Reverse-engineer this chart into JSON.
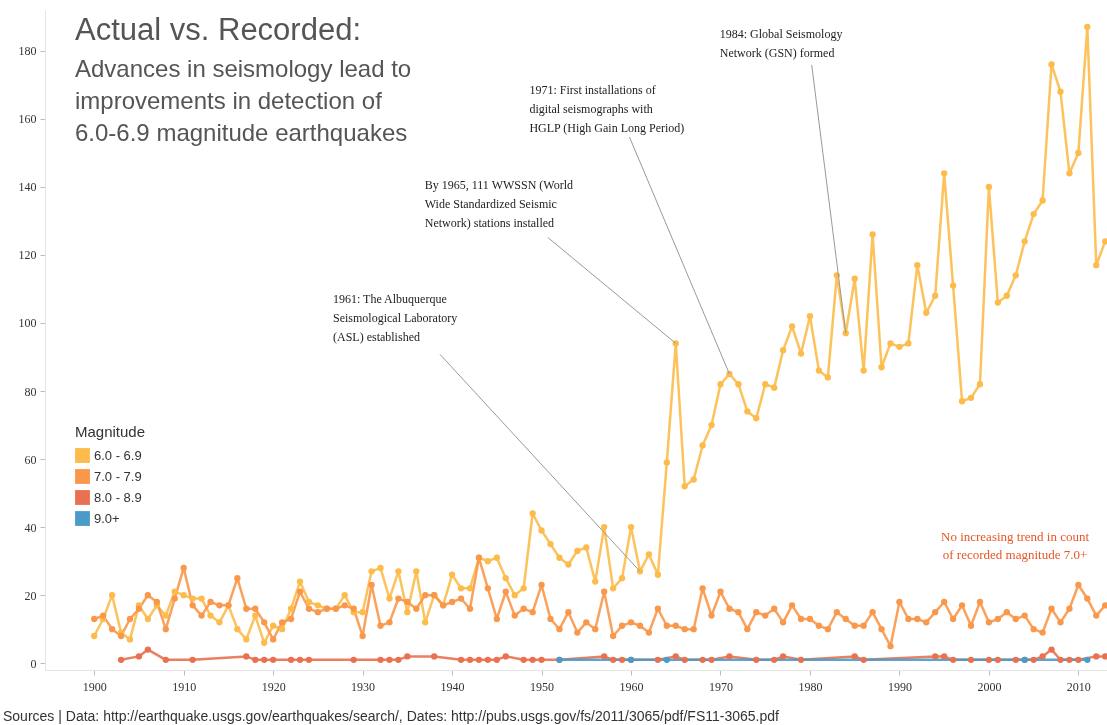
{
  "chart_data": {
    "type": "line",
    "title": "Actual vs. Recorded:",
    "subtitle": "Advances in seismology lead to\nimprovements in detection of\n6.0-6.9 magnitude earthquakes",
    "legend_title": "Magnitude",
    "legend": "left",
    "grid": false,
    "marker": "circle",
    "line_style": "solid",
    "xlim": [
      1894.5,
      2013.2
    ],
    "xticks": [
      1900,
      1910,
      1920,
      1930,
      1940,
      1950,
      1960,
      1970,
      1980,
      1990,
      2000,
      2010
    ],
    "ylim": [
      -2,
      192
    ],
    "yticks": [
      0,
      20,
      40,
      60,
      80,
      100,
      120,
      140,
      160,
      180
    ],
    "series": [
      {
        "name": "6.0 - 6.9",
        "color": "#fcbb4a",
        "x": [
          1900,
          1901,
          1902,
          1903,
          1904,
          1905,
          1906,
          1907,
          1908,
          1909,
          1910,
          1911,
          1912,
          1913,
          1914,
          1915,
          1916,
          1917,
          1918,
          1919,
          1920,
          1921,
          1922,
          1923,
          1924,
          1925,
          1926,
          1927,
          1928,
          1929,
          1930,
          1931,
          1932,
          1933,
          1934,
          1935,
          1936,
          1937,
          1938,
          1939,
          1940,
          1941,
          1942,
          1943,
          1944,
          1945,
          1946,
          1947,
          1948,
          1949,
          1950,
          1951,
          1952,
          1953,
          1954,
          1955,
          1956,
          1957,
          1958,
          1959,
          1960,
          1961,
          1962,
          1963,
          1964,
          1965,
          1966,
          1967,
          1968,
          1969,
          1970,
          1971,
          1972,
          1973,
          1974,
          1975,
          1976,
          1977,
          1978,
          1979,
          1980,
          1981,
          1982,
          1983,
          1984,
          1985,
          1986,
          1987,
          1988,
          1989,
          1990,
          1991,
          1992,
          1993,
          1994,
          1995,
          1996,
          1997,
          1998,
          1999,
          2000,
          2001,
          2002,
          2003,
          2004,
          2005,
          2006,
          2007,
          2008,
          2009,
          2010,
          2011,
          2012,
          2013
        ],
        "values": [
          8,
          13,
          20,
          9,
          7,
          17,
          13,
          17,
          14,
          21,
          20,
          19,
          19,
          14,
          12,
          17,
          10,
          7,
          14,
          6,
          11,
          10,
          16,
          24,
          18,
          17,
          16,
          16,
          20,
          15,
          15,
          27,
          28,
          19,
          27,
          15,
          27,
          12,
          20,
          17,
          26,
          22,
          22,
          31,
          30,
          31,
          25,
          20,
          22,
          44,
          39,
          35,
          31,
          29,
          33,
          34,
          24,
          40,
          22,
          25,
          40,
          27,
          32,
          26,
          59,
          94,
          52,
          54,
          64,
          70,
          82,
          85,
          82,
          74,
          72,
          82,
          81,
          92,
          99,
          91,
          102,
          86,
          84,
          114,
          97,
          113,
          86,
          126,
          87,
          94,
          93,
          94,
          117,
          103,
          108,
          144,
          111,
          77,
          78,
          82,
          140,
          106,
          108,
          114,
          124,
          132,
          136,
          176,
          168,
          144,
          150,
          187,
          117,
          124
        ]
      },
      {
        "name": "7.0 - 7.9",
        "color": "#f9974a",
        "x": [
          1900,
          1901,
          1902,
          1903,
          1904,
          1905,
          1906,
          1907,
          1908,
          1909,
          1910,
          1911,
          1912,
          1913,
          1914,
          1915,
          1916,
          1917,
          1918,
          1919,
          1920,
          1921,
          1922,
          1923,
          1924,
          1925,
          1926,
          1927,
          1928,
          1929,
          1930,
          1931,
          1932,
          1933,
          1934,
          1935,
          1936,
          1937,
          1938,
          1939,
          1940,
          1941,
          1942,
          1943,
          1944,
          1945,
          1946,
          1947,
          1948,
          1949,
          1950,
          1951,
          1952,
          1953,
          1954,
          1955,
          1956,
          1957,
          1958,
          1959,
          1960,
          1961,
          1962,
          1963,
          1964,
          1965,
          1966,
          1967,
          1968,
          1969,
          1970,
          1971,
          1972,
          1973,
          1974,
          1975,
          1976,
          1977,
          1978,
          1979,
          1980,
          1981,
          1982,
          1983,
          1984,
          1985,
          1986,
          1987,
          1988,
          1989,
          1990,
          1991,
          1992,
          1993,
          1994,
          1995,
          1996,
          1997,
          1998,
          1999,
          2000,
          2001,
          2002,
          2003,
          2004,
          2005,
          2006,
          2007,
          2008,
          2009,
          2010,
          2011,
          2012,
          2013
        ],
        "values": [
          13,
          14,
          10,
          8,
          13,
          16,
          20,
          18,
          10,
          19,
          28,
          17,
          14,
          18,
          17,
          17,
          25,
          16,
          16,
          12,
          7,
          12,
          13,
          21,
          16,
          15,
          16,
          16,
          17,
          16,
          8,
          23,
          11,
          12,
          19,
          18,
          16,
          20,
          20,
          17,
          18,
          19,
          16,
          31,
          22,
          13,
          21,
          14,
          16,
          15,
          23,
          13,
          10,
          15,
          9,
          12,
          10,
          21,
          8,
          11,
          12,
          11,
          9,
          16,
          11,
          11,
          10,
          10,
          22,
          14,
          21,
          16,
          15,
          10,
          15,
          14,
          16,
          12,
          17,
          13,
          13,
          11,
          10,
          15,
          13,
          11,
          11,
          15,
          10,
          5,
          18,
          13,
          13,
          12,
          15,
          18,
          13,
          17,
          11,
          18,
          12,
          13,
          15,
          13,
          14,
          10,
          9,
          16,
          12,
          16,
          23,
          19,
          14,
          17
        ]
      },
      {
        "name": "8.0 - 8.9",
        "color": "#e9714f",
        "x": [
          1903,
          1905,
          1906,
          1908,
          1911,
          1917,
          1918,
          1919,
          1920,
          1922,
          1923,
          1924,
          1929,
          1932,
          1933,
          1934,
          1935,
          1938,
          1941,
          1942,
          1943,
          1944,
          1945,
          1946,
          1948,
          1949,
          1950,
          1952,
          1957,
          1958,
          1959,
          1960,
          1963,
          1965,
          1966,
          1968,
          1969,
          1971,
          1974,
          1976,
          1977,
          1979,
          1985,
          1986,
          1994,
          1995,
          1996,
          1998,
          2000,
          2001,
          2003,
          2004,
          2005,
          2006,
          2007,
          2008,
          2009,
          2010,
          2012,
          2013
        ],
        "values": [
          1,
          2,
          4,
          1,
          1,
          2,
          1,
          1,
          1,
          1,
          1,
          1,
          1,
          1,
          1,
          1,
          2,
          2,
          1,
          1,
          1,
          1,
          1,
          2,
          1,
          1,
          1,
          1,
          2,
          1,
          1,
          1,
          1,
          2,
          1,
          1,
          1,
          2,
          1,
          1,
          2,
          1,
          2,
          1,
          2,
          2,
          1,
          1,
          1,
          1,
          1,
          1,
          1,
          2,
          4,
          1,
          1,
          1,
          2,
          2
        ]
      },
      {
        "name": "9.0+",
        "color": "#4b9bc8",
        "x": [
          1952,
          1960,
          1964,
          2004,
          2011
        ],
        "values": [
          1,
          1,
          1,
          1,
          1
        ]
      }
    ],
    "annotations": [
      {
        "text": "1961: The Albuquerque\nSeismological Laboratory\n(ASL) established",
        "x": 1961,
        "y": 27
      },
      {
        "text": "By 1965, 111 WWSSN (World\nWide Standardized Seismic\nNetwork) stations installed",
        "x": 1965,
        "y": 94
      },
      {
        "text": "1971: First installations of\ndigital seismographs with\nHGLP (High Gain Long Period)",
        "x": 1971,
        "y": 85
      },
      {
        "text": "1984: Global Seismology\nNetwork (GSN) formed",
        "x": 1984,
        "y": 97
      },
      "No increasing trend in count\nof recorded magnitude 7.0+",
      "Sources | Data: http://earthquake.usgs.gov/earthquakes/search/, Dates: http://pubs.usgs.gov/fs/2011/3065/pdf/FS11-3065.pdf"
    ]
  }
}
